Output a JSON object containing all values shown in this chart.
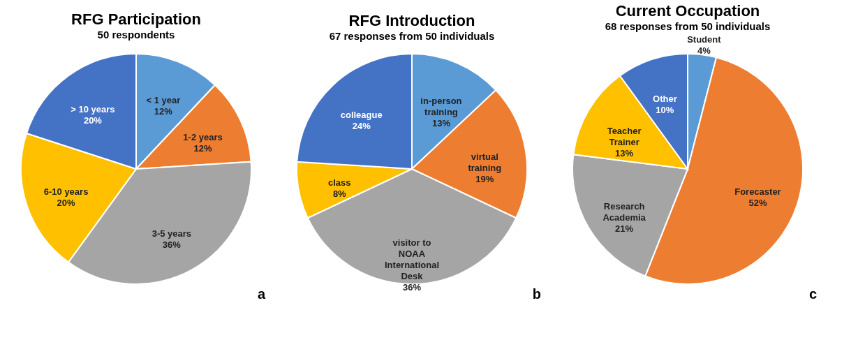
{
  "chart_data": [
    {
      "type": "pie",
      "title": "RFG Participation",
      "subtitle": "50 respondents",
      "categories": [
        "< 1 year",
        "1-2 years",
        "3-5 years",
        "6-10 years",
        "> 10 years"
      ],
      "values": [
        12,
        12,
        36,
        20,
        20
      ],
      "value_labels": [
        "12%",
        "12%",
        "36%",
        "20%",
        "20%"
      ],
      "colors": [
        "#5b9bd5",
        "#ed7d31",
        "#a5a5a5",
        "#ffc000",
        "#4472c4"
      ],
      "legend": false,
      "annotations": [
        "a"
      ]
    },
    {
      "type": "pie",
      "title": "RFG Introduction",
      "subtitle": "67 responses from 50 individuals",
      "categories": [
        "in-person training",
        "virtual training",
        "visitor to NOAA International Desk",
        "class",
        "colleague"
      ],
      "values": [
        13,
        19,
        36,
        8,
        24
      ],
      "value_labels": [
        "13%",
        "19%",
        "36%",
        "8%",
        "24%"
      ],
      "colors": [
        "#5b9bd5",
        "#ed7d31",
        "#a5a5a5",
        "#ffc000",
        "#4472c4"
      ],
      "legend": false,
      "annotations": [
        "b"
      ]
    },
    {
      "type": "pie",
      "title": "Current Occupation",
      "subtitle": "68 responses from 50 individuals",
      "categories": [
        "Student",
        "Forecaster",
        "Research Academia",
        "Teacher Trainer",
        "Other"
      ],
      "values": [
        4,
        52,
        21,
        13,
        10
      ],
      "value_labels": [
        "4%",
        "52%",
        "21%",
        "13%",
        "10%"
      ],
      "colors": [
        "#5b9bd5",
        "#ed7d31",
        "#a5a5a5",
        "#ffc000",
        "#4472c4"
      ],
      "legend": false,
      "annotations": [
        "c"
      ]
    }
  ]
}
